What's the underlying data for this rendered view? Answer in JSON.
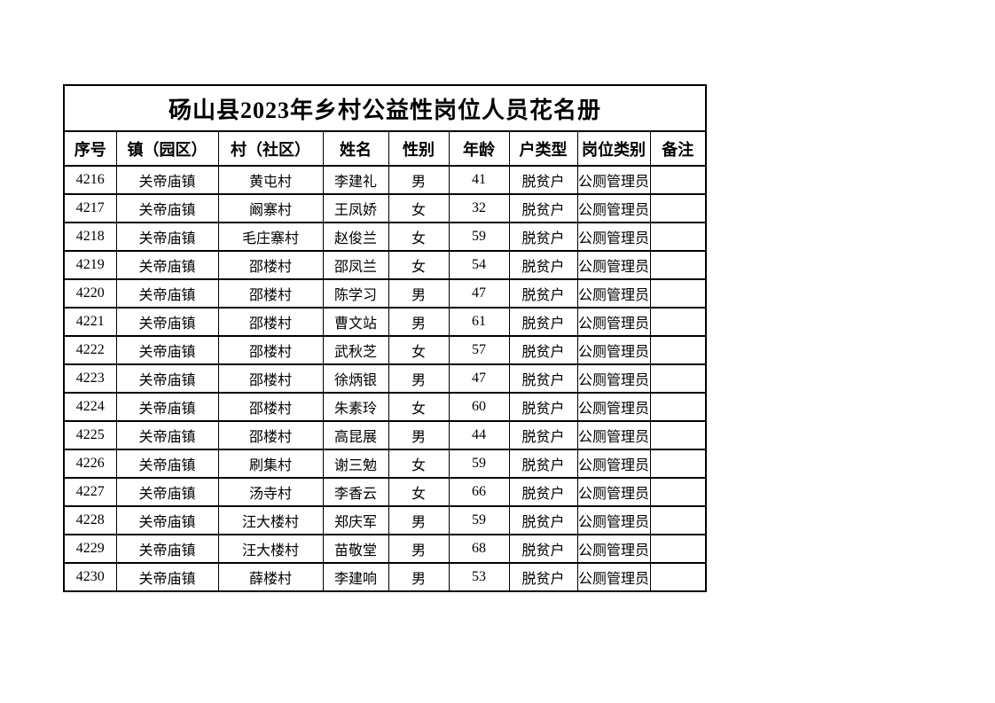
{
  "document": {
    "title": "砀山县2023年乡村公益性岗位人员花名册",
    "columns": [
      "序号",
      "镇（园区）",
      "村（社区）",
      "姓名",
      "性别",
      "年龄",
      "户类型",
      "岗位类别",
      "备注"
    ],
    "rows": [
      [
        "4216",
        "关帝庙镇",
        "黄屯村",
        "李建礼",
        "男",
        "41",
        "脱贫户",
        "公厕管理员",
        ""
      ],
      [
        "4217",
        "关帝庙镇",
        "阚寨村",
        "王凤娇",
        "女",
        "32",
        "脱贫户",
        "公厕管理员",
        ""
      ],
      [
        "4218",
        "关帝庙镇",
        "毛庄寨村",
        "赵俊兰",
        "女",
        "59",
        "脱贫户",
        "公厕管理员",
        ""
      ],
      [
        "4219",
        "关帝庙镇",
        "邵楼村",
        "邵凤兰",
        "女",
        "54",
        "脱贫户",
        "公厕管理员",
        ""
      ],
      [
        "4220",
        "关帝庙镇",
        "邵楼村",
        "陈学习",
        "男",
        "47",
        "脱贫户",
        "公厕管理员",
        ""
      ],
      [
        "4221",
        "关帝庙镇",
        "邵楼村",
        "曹文站",
        "男",
        "61",
        "脱贫户",
        "公厕管理员",
        ""
      ],
      [
        "4222",
        "关帝庙镇",
        "邵楼村",
        "武秋芝",
        "女",
        "57",
        "脱贫户",
        "公厕管理员",
        ""
      ],
      [
        "4223",
        "关帝庙镇",
        "邵楼村",
        "徐炳银",
        "男",
        "47",
        "脱贫户",
        "公厕管理员",
        ""
      ],
      [
        "4224",
        "关帝庙镇",
        "邵楼村",
        "朱素玲",
        "女",
        "60",
        "脱贫户",
        "公厕管理员",
        ""
      ],
      [
        "4225",
        "关帝庙镇",
        "邵楼村",
        "高昆展",
        "男",
        "44",
        "脱贫户",
        "公厕管理员",
        ""
      ],
      [
        "4226",
        "关帝庙镇",
        "刷集村",
        "谢三勉",
        "女",
        "59",
        "脱贫户",
        "公厕管理员",
        ""
      ],
      [
        "4227",
        "关帝庙镇",
        "汤寺村",
        "李香云",
        "女",
        "66",
        "脱贫户",
        "公厕管理员",
        ""
      ],
      [
        "4228",
        "关帝庙镇",
        "汪大楼村",
        "郑庆军",
        "男",
        "59",
        "脱贫户",
        "公厕管理员",
        ""
      ],
      [
        "4229",
        "关帝庙镇",
        "汪大楼村",
        "苗敬堂",
        "男",
        "68",
        "脱贫户",
        "公厕管理员",
        ""
      ],
      [
        "4230",
        "关帝庙镇",
        "薛楼村",
        "李建响",
        "男",
        "53",
        "脱贫户",
        "公厕管理员",
        ""
      ]
    ],
    "colors": {
      "border": "#000000",
      "text": "#000000",
      "page_background": "#ffffff"
    }
  }
}
